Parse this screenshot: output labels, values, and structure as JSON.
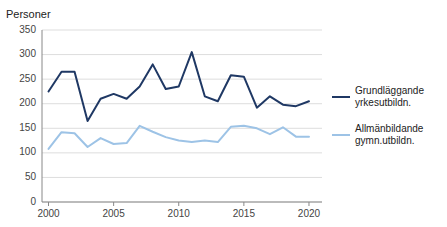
{
  "chart_data": {
    "type": "line",
    "y_label": "Personer",
    "x": [
      2000,
      2001,
      2002,
      2003,
      2004,
      2005,
      2006,
      2007,
      2008,
      2009,
      2010,
      2011,
      2012,
      2013,
      2014,
      2015,
      2016,
      2017,
      2018,
      2019,
      2020
    ],
    "series": [
      {
        "name": "Grundläggande\nyrkesutbildn.",
        "color": "#1f3864",
        "values": [
          225,
          265,
          265,
          165,
          210,
          220,
          210,
          235,
          280,
          230,
          235,
          305,
          215,
          205,
          258,
          255,
          192,
          215,
          198,
          195,
          205
        ]
      },
      {
        "name": "Allmänbildande\ngymn.utbildn.",
        "color": "#9dc3e6",
        "values": [
          108,
          142,
          140,
          112,
          130,
          118,
          120,
          155,
          143,
          132,
          125,
          122,
          125,
          122,
          153,
          155,
          150,
          138,
          152,
          133,
          133
        ]
      }
    ],
    "xlim": [
      1999.5,
      2021.0
    ],
    "xticks": [
      2000,
      2005,
      2010,
      2015,
      2020
    ],
    "ylim": [
      0,
      350
    ],
    "yticks": [
      0,
      50,
      100,
      150,
      200,
      250,
      300,
      350
    ],
    "grid": true,
    "legend": "right"
  }
}
